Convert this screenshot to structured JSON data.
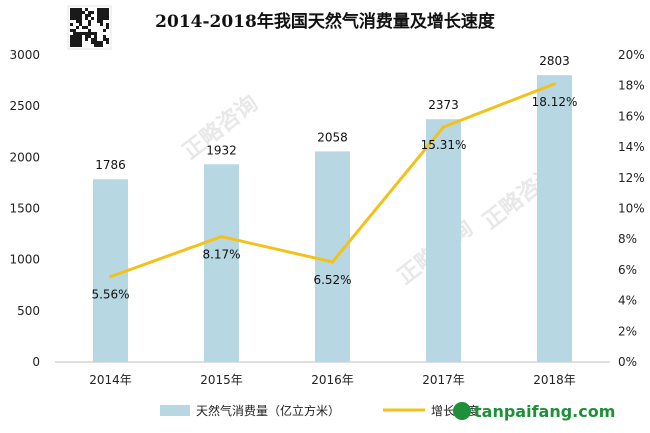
{
  "chart_data": {
    "type": "bar",
    "title": "2014-2018年我国天然气消费量及增长速度",
    "categories": [
      "2014年",
      "2015年",
      "2016年",
      "2017年",
      "2018年"
    ],
    "series": [
      {
        "name": "天然气消费量（亿立方米）",
        "type": "bar",
        "axis": "left",
        "values": [
          1786,
          1932,
          2058,
          2373,
          2803
        ],
        "labels": [
          "1786",
          "1932",
          "2058",
          "2373",
          "2803"
        ],
        "color": "#b7d7e2"
      },
      {
        "name": "增长速度",
        "type": "line",
        "axis": "right",
        "values": [
          5.56,
          8.17,
          6.52,
          15.31,
          18.12
        ],
        "labels": [
          "5.56%",
          "8.17%",
          "6.52%",
          "15.31%",
          "18.12%"
        ],
        "color": "#f2c21b"
      }
    ],
    "y_left": {
      "range": [
        0,
        3000
      ],
      "ticks": [
        "0",
        "500",
        "1000",
        "1500",
        "2000",
        "2500",
        "3000"
      ]
    },
    "y_right": {
      "range": [
        0,
        20
      ],
      "ticks": [
        "0%",
        "2%",
        "4%",
        "6%",
        "8%",
        "10%",
        "12%",
        "14%",
        "16%",
        "18%",
        "20%"
      ]
    },
    "grid": false,
    "legend_position": "bottom"
  },
  "watermark": {
    "text": "正略咨询"
  },
  "brand": {
    "text": "tanpaifang.com"
  }
}
